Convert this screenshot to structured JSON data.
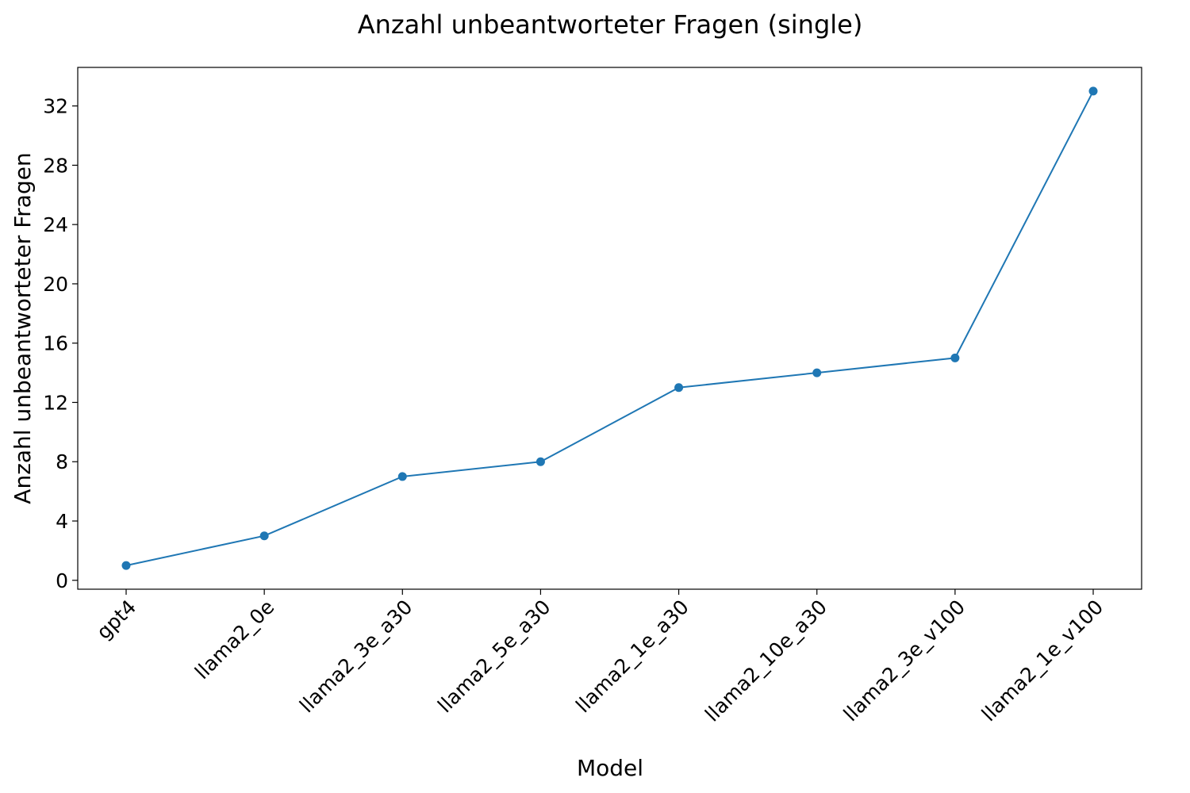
{
  "chart_data": {
    "type": "line",
    "title": "Anzahl unbeantworteter Fragen (single)",
    "xlabel": "Model",
    "ylabel": "Anzahl unbeantworteter Fragen",
    "categories": [
      "gpt4",
      "llama2_0e",
      "llama2_3e_a30",
      "llama2_5e_a30",
      "llama2_1e_a30",
      "llama2_10e_a30",
      "llama2_3e_v100",
      "llama2_1e_v100"
    ],
    "series": [
      {
        "values": [
          1,
          3,
          7,
          8,
          13,
          14,
          15,
          33
        ],
        "color": "#1f77b4",
        "marker": "circle"
      }
    ],
    "yticks": [
      0,
      4,
      8,
      12,
      16,
      20,
      24,
      28,
      32
    ],
    "ylim": [
      -0.6,
      34.6
    ],
    "grid": false,
    "xtick_rotation": 45
  }
}
